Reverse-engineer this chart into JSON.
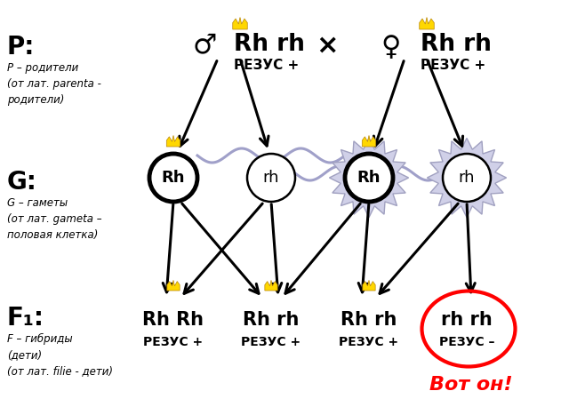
{
  "bg_color": "#ffffff",
  "title_p": "P:",
  "title_g": "G:",
  "title_f": "F₁:",
  "label_p": "P – родители\n(от лат. parenta -\nродители)",
  "label_g": "G – гаметы\n(от лат. gameta –\nполовая клетка)",
  "label_f": "F – гибриды\n(дети)\n(от лат. filie - дети)",
  "male_genotype": "Rh rh",
  "female_genotype": "Rh rh",
  "rezus_plus": "РЕЗУС +",
  "rezus_minus": "РЕЗУС –",
  "cross": "×",
  "f1_genotypes": [
    "Rh Rh",
    "Rh rh",
    "Rh rh",
    "rh rh"
  ],
  "f1_rezus_labels": [
    "РЕЗУС +",
    "РЕЗУС +",
    "РЕЗУС +",
    "РЕЗУС –"
  ],
  "vot_on": "Вот он!",
  "gametes": [
    "Rh",
    "rh",
    "Rh",
    "rh"
  ],
  "gamete_bold": [
    true,
    false,
    true,
    false
  ],
  "gamete_starburst": [
    false,
    false,
    true,
    true
  ],
  "gamete_crown": [
    true,
    false,
    true,
    false
  ],
  "f1_crown": [
    true,
    true,
    true,
    false
  ]
}
